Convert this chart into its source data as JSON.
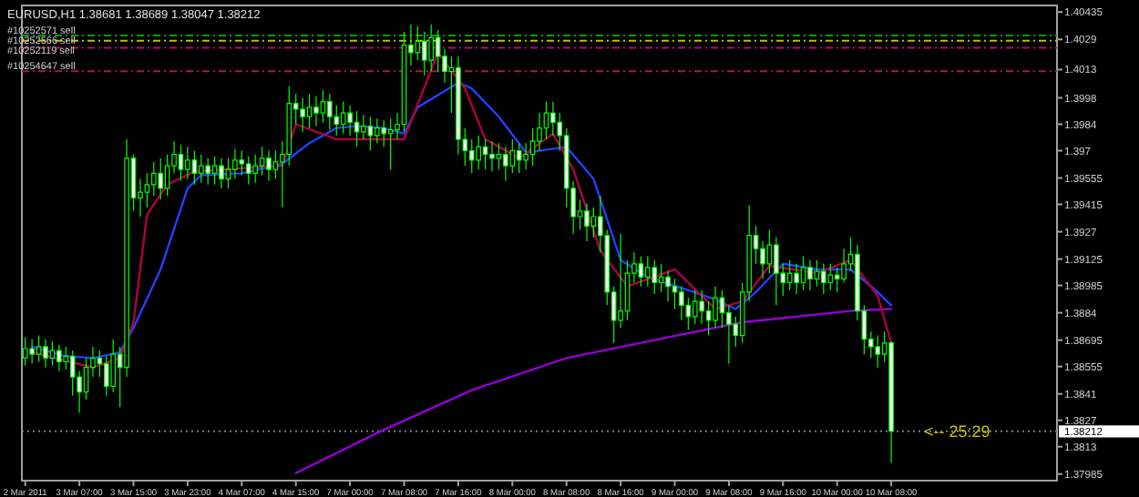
{
  "chart_data": {
    "type": "candlestick",
    "title": "EURUSD,H1  1.38681 1.38689 1.38047 1.38212",
    "categories": [
      "2 Mar 2011",
      null,
      null,
      null,
      null,
      null,
      null,
      null,
      "3 Mar 07:00",
      null,
      null,
      null,
      null,
      null,
      null,
      null,
      "3 Mar 15:00",
      null,
      null,
      null,
      null,
      null,
      null,
      null,
      "3 Mar 23:00",
      null,
      null,
      null,
      null,
      null,
      null,
      null,
      "4 Mar 07:00",
      null,
      null,
      null,
      null,
      null,
      null,
      null,
      "4 Mar 15:00",
      null,
      null,
      null,
      null,
      null,
      null,
      null,
      "7 Mar 00:00",
      null,
      null,
      null,
      null,
      null,
      null,
      null,
      "7 Mar 08:00",
      null,
      null,
      null,
      null,
      null,
      null,
      null,
      "7 Mar 16:00",
      null,
      null,
      null,
      null,
      null,
      null,
      null,
      "8 Mar 00:00",
      null,
      null,
      null,
      null,
      null,
      null,
      null,
      "8 Mar 08:00",
      null,
      null,
      null,
      null,
      null,
      null,
      null,
      "8 Mar 16:00",
      null,
      null,
      null,
      null,
      null,
      null,
      null,
      "9 Mar 00:00",
      null,
      null,
      null,
      null,
      null,
      null,
      null,
      "9 Mar 08:00",
      null,
      null,
      null,
      null,
      null,
      null,
      null,
      "9 Mar 16:00",
      null,
      null,
      null,
      null,
      null,
      null,
      null,
      "10 Mar 00:00",
      null,
      null,
      null,
      null,
      null,
      null,
      null,
      "10 Mar 08:00",
      null,
      null,
      null,
      null,
      null,
      null,
      null,
      null,
      null,
      null,
      null,
      null,
      null,
      null,
      null,
      null,
      null,
      null,
      null,
      null,
      null,
      null,
      null,
      null
    ],
    "ylim": [
      1.3795,
      1.4047
    ],
    "yticks": [
      1.37985,
      1.3813,
      1.3827,
      1.3841,
      1.38555,
      1.38695,
      1.3884,
      1.38985,
      1.39125,
      1.3927,
      1.39415,
      1.39555,
      1.397,
      1.3984,
      1.3998,
      1.4013,
      1.4029,
      1.40435
    ],
    "ref_lines": [
      {
        "axis": "y",
        "value": 1.40311,
        "label": "#10252571 sell",
        "color": "#00a000",
        "line_style": "dashed"
      },
      {
        "axis": "y",
        "value": 1.40283,
        "label": "#10252566 sell",
        "color": "#c0c000",
        "line_style": "dashed"
      },
      {
        "axis": "y",
        "value": 1.40245,
        "label": "#10252119 sell",
        "color": "#c00080",
        "line_style": "dashed"
      },
      {
        "axis": "y",
        "value": 1.40121,
        "label": "#10254647 sell",
        "color": "#a02040",
        "line_style": "dashed"
      },
      {
        "axis": "y",
        "value": 1.38212,
        "label": "1.38212",
        "color": "#708090",
        "line_style": "dotted"
      }
    ],
    "annotations": [
      "<-- 25:29"
    ],
    "series": [
      {
        "type": "line",
        "color": "#9400d3",
        "values": [
          null,
          null,
          null,
          null,
          null,
          null,
          null,
          null,
          null,
          null,
          null,
          null,
          null,
          null,
          null,
          null,
          null,
          null,
          null,
          null,
          null,
          null,
          null,
          null,
          null,
          null,
          null,
          null,
          null,
          null,
          null,
          null,
          null,
          null,
          null,
          null,
          null,
          null,
          null,
          null,
          1.3799,
          null,
          null,
          null,
          null,
          null,
          null,
          null,
          null,
          null,
          null,
          null,
          null,
          1.3822,
          null,
          null,
          null,
          null,
          null,
          null,
          null,
          null,
          null,
          null,
          null,
          null,
          1.3843,
          null,
          null,
          null,
          null,
          null,
          null,
          null,
          null,
          null,
          null,
          null,
          null,
          null,
          1.386,
          null,
          null,
          null,
          null,
          null,
          null,
          null,
          null,
          null,
          null,
          null,
          null,
          null,
          null,
          null,
          null,
          null,
          null,
          null,
          null,
          null,
          null,
          null,
          null,
          null,
          1.3879,
          null,
          null,
          null,
          null,
          null,
          null,
          null,
          null,
          null,
          null,
          null,
          null,
          null,
          null,
          null,
          1.3885,
          null,
          null,
          null,
          null,
          null,
          1.3886,
          null,
          null,
          null,
          null,
          null,
          null,
          null,
          null,
          null,
          null,
          null,
          null,
          null,
          null,
          null,
          null,
          null,
          null,
          null,
          null,
          null,
          null,
          null,
          null
        ]
      },
      {
        "type": "line",
        "color": "#2040ff",
        "values": [
          null,
          1.3866,
          null,
          null,
          null,
          null,
          1.3861,
          null,
          null,
          null,
          1.386,
          null,
          null,
          null,
          1.3863,
          null,
          1.3876,
          null,
          null,
          null,
          1.3907,
          null,
          null,
          null,
          1.395,
          null,
          1.3957,
          null,
          null,
          null,
          null,
          null,
          1.3958,
          null,
          null,
          null,
          null,
          null,
          1.3963,
          null,
          null,
          null,
          1.3974,
          null,
          null,
          null,
          1.3982,
          null,
          null,
          1.3983,
          null,
          null,
          null,
          1.3982,
          null,
          null,
          1.3979,
          null,
          1.3993,
          null,
          null,
          null,
          null,
          null,
          1.4006,
          null,
          1.4003,
          null,
          null,
          null,
          1.3988,
          null,
          null,
          null,
          1.3969,
          null,
          null,
          null,
          null,
          null,
          1.3972,
          null,
          null,
          null,
          1.3955,
          null,
          null,
          null,
          1.3912,
          null,
          null,
          null,
          1.3903,
          null,
          null,
          null,
          null,
          null,
          1.3896,
          null,
          null,
          null,
          1.3891,
          null,
          null,
          1.3886,
          null,
          null,
          1.3895,
          null,
          null,
          null,
          1.391,
          null,
          null,
          null,
          null,
          1.3907,
          null,
          null,
          null,
          null,
          1.3907,
          null,
          null,
          null,
          1.3895,
          null,
          1.3888,
          null,
          null,
          null,
          null,
          null,
          null,
          null,
          null,
          null,
          null,
          null,
          null,
          null,
          null,
          null,
          null,
          null,
          null,
          null,
          null,
          null,
          null,
          null,
          null
        ]
      },
      {
        "type": "line",
        "color": "#b00040",
        "values": [
          null,
          1.3863,
          null,
          null,
          null,
          null,
          null,
          null,
          null,
          null,
          1.3855,
          null,
          null,
          null,
          1.386,
          null,
          1.3879,
          null,
          1.3936,
          null,
          null,
          1.3952,
          null,
          null,
          null,
          1.3959,
          null,
          null,
          null,
          null,
          null,
          null,
          null,
          null,
          null,
          null,
          null,
          null,
          1.3962,
          null,
          1.3984,
          null,
          null,
          null,
          null,
          null,
          1.3976,
          null,
          null,
          null,
          null,
          null,
          null,
          null,
          null,
          null,
          1.3976,
          null,
          null,
          null,
          null,
          1.4022,
          null,
          null,
          null,
          1.4003,
          null,
          null,
          1.3976,
          null,
          null,
          null,
          null,
          1.3966,
          null,
          null,
          null,
          null,
          1.3979,
          null,
          null,
          1.396,
          null,
          null,
          null,
          1.3917,
          null,
          null,
          null,
          1.3898,
          null,
          null,
          null,
          null,
          null,
          null,
          1.3907,
          null,
          null,
          null,
          null,
          null,
          1.3886,
          null,
          null,
          null,
          1.389,
          null,
          null,
          null,
          1.3909,
          null,
          null,
          null,
          null,
          null,
          null,
          1.3905,
          null,
          null,
          null,
          null,
          1.3912,
          null,
          null,
          null,
          1.3893,
          null,
          1.3868,
          null,
          null,
          null,
          null,
          null,
          null,
          null,
          null,
          null,
          null,
          null,
          null,
          null,
          null,
          null,
          null,
          null,
          null,
          null,
          null,
          null,
          null,
          null,
          null
        ]
      },
      {
        "color": "#00ff00",
        "colors": [
          "#000000",
          "#ffffff",
          "#000000",
          "#ffffff",
          "#000000",
          "#ffffff",
          "#000000",
          "#ffffff",
          "#ffffff",
          "#000000",
          "#000000",
          "#ffffff",
          "#ffffff",
          "#000000",
          "#ffffff",
          "#000000",
          "#ffffff",
          "#000000",
          "#000000",
          "#000000",
          "#ffffff",
          "#000000",
          "#000000",
          "#ffffff",
          "#000000",
          "#ffffff",
          "#000000",
          "#ffffff",
          "#000000",
          "#ffffff",
          "#000000",
          "#000000",
          "#ffffff",
          "#ffffff",
          "#000000",
          "#000000",
          "#ffffff",
          "#000000",
          "#000000",
          "#000000",
          "#ffffff",
          "#ffffff",
          "#000000",
          "#ffffff",
          "#000000",
          "#ffffff",
          "#ffffff",
          "#000000",
          "#ffffff",
          "#ffffff",
          "#000000",
          "#ffffff",
          "#000000",
          "#ffffff",
          "#000000",
          "#000000",
          "#000000",
          "#ffffff",
          "#000000",
          "#ffffff",
          "#000000",
          "#ffffff",
          "#ffffff",
          "#000000",
          "#ffffff",
          "#ffffff",
          "#ffffff",
          "#000000",
          "#ffffff",
          "#ffffff",
          "#000000",
          "#ffffff",
          "#000000",
          "#ffffff",
          "#000000",
          "#000000",
          "#000000",
          "#000000",
          "#ffffff",
          "#ffffff",
          "#ffffff",
          "#ffffff",
          "#000000",
          "#ffffff",
          "#000000",
          "#ffffff",
          "#ffffff",
          "#ffffff",
          "#000000",
          "#000000",
          "#000000",
          "#ffffff",
          "#000000",
          "#ffffff",
          "#000000",
          "#ffffff",
          "#ffffff",
          "#ffffff",
          "#ffffff",
          "#000000",
          "#ffffff",
          "#ffffff",
          "#000000",
          "#ffffff",
          "#ffffff",
          "#ffffff",
          "#000000",
          "#000000",
          "#ffffff",
          "#ffffff",
          "#000000",
          "#ffffff",
          "#ffffff",
          "#000000",
          "#ffffff",
          "#000000",
          "#ffffff",
          "#000000",
          "#ffffff",
          "#000000",
          "#ffffff",
          "#000000",
          "#000000",
          "#ffffff",
          "#ffffff",
          "#ffffff",
          "#ffffff",
          "#000000",
          "#ffffff",
          null,
          null,
          null,
          null,
          null,
          null,
          null,
          null,
          null,
          null,
          null,
          null,
          null,
          null,
          null,
          null,
          null,
          null,
          null,
          null,
          null,
          null,
          null,
          null
        ],
        "ohlc": [
          [
            1.386,
            1.3871,
            1.3856,
            1.3865
          ],
          [
            1.3865,
            1.387,
            1.3857,
            1.3862
          ],
          [
            1.3862,
            1.3872,
            1.3858,
            1.3866
          ],
          [
            1.3866,
            1.387,
            1.3855,
            1.386
          ],
          [
            1.386,
            1.3869,
            1.3856,
            1.3864
          ],
          [
            1.3864,
            1.3867,
            1.3853,
            1.3858
          ],
          [
            1.3858,
            1.3866,
            1.3854,
            1.3861
          ],
          [
            1.3861,
            1.3864,
            1.384,
            1.385
          ],
          [
            1.385,
            1.3853,
            1.3831,
            1.3842
          ],
          [
            1.3842,
            1.386,
            1.3838,
            1.3855
          ],
          [
            1.3855,
            1.3866,
            1.385,
            1.386
          ],
          [
            1.386,
            1.3864,
            1.385,
            1.3857
          ],
          [
            1.3857,
            1.3861,
            1.384,
            1.3845
          ],
          [
            1.3845,
            1.387,
            1.3842,
            1.3862
          ],
          [
            1.3862,
            1.3866,
            1.3834,
            1.3855
          ],
          [
            1.3855,
            1.3976,
            1.385,
            1.3966
          ],
          [
            1.3966,
            1.3968,
            1.3938,
            1.3945
          ],
          [
            1.3945,
            1.3955,
            1.3935,
            1.3948
          ],
          [
            1.3948,
            1.3958,
            1.394,
            1.3952
          ],
          [
            1.3952,
            1.3964,
            1.3946,
            1.3958
          ],
          [
            1.3958,
            1.3966,
            1.3944,
            1.395
          ],
          [
            1.395,
            1.3968,
            1.3946,
            1.3962
          ],
          [
            1.3962,
            1.3975,
            1.3958,
            1.3968
          ],
          [
            1.3968,
            1.3973,
            1.3954,
            1.396
          ],
          [
            1.396,
            1.3972,
            1.3955,
            1.3965
          ],
          [
            1.3965,
            1.397,
            1.3952,
            1.3958
          ],
          [
            1.3958,
            1.3968,
            1.3953,
            1.3962
          ],
          [
            1.3962,
            1.3966,
            1.3952,
            1.3958
          ],
          [
            1.3958,
            1.3967,
            1.3952,
            1.3962
          ],
          [
            1.3962,
            1.3966,
            1.395,
            1.3955
          ],
          [
            1.3955,
            1.3966,
            1.395,
            1.396
          ],
          [
            1.396,
            1.3971,
            1.3955,
            1.3965
          ],
          [
            1.3965,
            1.397,
            1.3957,
            1.3963
          ],
          [
            1.3963,
            1.3967,
            1.3952,
            1.3958
          ],
          [
            1.3958,
            1.3968,
            1.3953,
            1.3962
          ],
          [
            1.3962,
            1.3972,
            1.3957,
            1.3966
          ],
          [
            1.3966,
            1.397,
            1.3954,
            1.396
          ],
          [
            1.396,
            1.397,
            1.3955,
            1.3964
          ],
          [
            1.3964,
            1.3975,
            1.394,
            1.3968
          ],
          [
            1.3968,
            1.4004,
            1.3962,
            1.3995
          ],
          [
            1.3995,
            1.4,
            1.3984,
            1.3992
          ],
          [
            1.3992,
            1.3998,
            1.398,
            1.3988
          ],
          [
            1.3988,
            1.4,
            1.3982,
            1.3993
          ],
          [
            1.3993,
            1.3999,
            1.3983,
            1.399
          ],
          [
            1.399,
            1.4002,
            1.3985,
            1.3996
          ],
          [
            1.3996,
            1.4,
            1.3981,
            1.3988
          ],
          [
            1.3988,
            1.3994,
            1.3978,
            1.3984
          ],
          [
            1.3984,
            1.3996,
            1.3979,
            1.399
          ],
          [
            1.399,
            1.3994,
            1.3978,
            1.3985
          ],
          [
            1.3985,
            1.3991,
            1.3972,
            1.398
          ],
          [
            1.398,
            1.3989,
            1.3976,
            1.3983
          ],
          [
            1.3983,
            1.3988,
            1.397,
            1.3978
          ],
          [
            1.3978,
            1.3987,
            1.3974,
            1.3982
          ],
          [
            1.3982,
            1.3986,
            1.3972,
            1.3979
          ],
          [
            1.3979,
            1.3987,
            1.396,
            1.3981
          ],
          [
            1.3981,
            1.399,
            1.3976,
            1.3984
          ],
          [
            1.3984,
            1.4033,
            1.398,
            1.4026
          ],
          [
            1.4026,
            1.4037,
            1.4015,
            1.4022
          ],
          [
            1.4022,
            1.4036,
            1.4018,
            1.4028
          ],
          [
            1.4028,
            1.4033,
            1.401,
            1.4018
          ],
          [
            1.4018,
            1.4037,
            1.4012,
            1.403
          ],
          [
            1.403,
            1.4034,
            1.4012,
            1.402
          ],
          [
            1.402,
            1.4024,
            1.4006,
            1.4012
          ],
          [
            1.4012,
            1.402,
            1.399,
            1.4014
          ],
          [
            1.4014,
            1.402,
            1.3968,
            1.3976
          ],
          [
            1.3976,
            1.3982,
            1.3962,
            1.397
          ],
          [
            1.397,
            1.3976,
            1.3958,
            1.3965
          ],
          [
            1.3965,
            1.3978,
            1.396,
            1.3972
          ],
          [
            1.3972,
            1.3976,
            1.396,
            1.3968
          ],
          [
            1.3968,
            1.3975,
            1.3959,
            1.3966
          ],
          [
            1.3966,
            1.3974,
            1.396,
            1.3968
          ],
          [
            1.3968,
            1.3972,
            1.3954,
            1.3962
          ],
          [
            1.3962,
            1.3976,
            1.3958,
            1.397
          ],
          [
            1.397,
            1.3974,
            1.3958,
            1.3965
          ],
          [
            1.3965,
            1.3974,
            1.396,
            1.3968
          ],
          [
            1.3968,
            1.3982,
            1.3962,
            1.3975
          ],
          [
            1.3975,
            1.399,
            1.397,
            1.3982
          ],
          [
            1.3982,
            1.3996,
            1.3976,
            1.399
          ],
          [
            1.399,
            1.3996,
            1.3978,
            1.3985
          ],
          [
            1.3985,
            1.399,
            1.397,
            1.3978
          ],
          [
            1.3978,
            1.3982,
            1.394,
            1.395
          ],
          [
            1.395,
            1.3954,
            1.3926,
            1.3935
          ],
          [
            1.3935,
            1.3944,
            1.3928,
            1.3938
          ],
          [
            1.3938,
            1.3942,
            1.3922,
            1.393
          ],
          [
            1.393,
            1.394,
            1.3924,
            1.3935
          ],
          [
            1.3935,
            1.3946,
            1.3916,
            1.3925
          ],
          [
            1.3925,
            1.3928,
            1.3888,
            1.3895
          ],
          [
            1.3895,
            1.3898,
            1.3868,
            1.388
          ],
          [
            1.388,
            1.3926,
            1.3876,
            1.3885
          ],
          [
            1.3885,
            1.3912,
            1.388,
            1.3905
          ],
          [
            1.3905,
            1.3916,
            1.39,
            1.391
          ],
          [
            1.391,
            1.3914,
            1.3898,
            1.3903
          ],
          [
            1.3903,
            1.3914,
            1.3898,
            1.3908
          ],
          [
            1.3908,
            1.3912,
            1.3894,
            1.39
          ],
          [
            1.39,
            1.391,
            1.3895,
            1.3903
          ],
          [
            1.3903,
            1.3906,
            1.389,
            1.3898
          ],
          [
            1.3898,
            1.3902,
            1.3886,
            1.3895
          ],
          [
            1.3895,
            1.3898,
            1.388,
            1.3888
          ],
          [
            1.3888,
            1.3892,
            1.3875,
            1.3882
          ],
          [
            1.3882,
            1.3896,
            1.3878,
            1.389
          ],
          [
            1.389,
            1.3896,
            1.3878,
            1.3885
          ],
          [
            1.3885,
            1.389,
            1.3872,
            1.388
          ],
          [
            1.388,
            1.3898,
            1.3876,
            1.3892
          ],
          [
            1.3892,
            1.3896,
            1.3876,
            1.3884
          ],
          [
            1.3884,
            1.3888,
            1.3857,
            1.3878
          ],
          [
            1.3878,
            1.3882,
            1.3866,
            1.3872
          ],
          [
            1.3872,
            1.39,
            1.3868,
            1.3895
          ],
          [
            1.3895,
            1.3941,
            1.389,
            1.3925
          ],
          [
            1.3925,
            1.393,
            1.391,
            1.3918
          ],
          [
            1.3918,
            1.3922,
            1.3902,
            1.391
          ],
          [
            1.391,
            1.3928,
            1.3905,
            1.392
          ],
          [
            1.392,
            1.3924,
            1.3888,
            1.3905
          ],
          [
            1.3905,
            1.391,
            1.3893,
            1.39
          ],
          [
            1.39,
            1.3912,
            1.3896,
            1.3905
          ],
          [
            1.3905,
            1.391,
            1.3894,
            1.39
          ],
          [
            1.39,
            1.3914,
            1.3896,
            1.3908
          ],
          [
            1.3908,
            1.3912,
            1.3896,
            1.3902
          ],
          [
            1.3902,
            1.3912,
            1.3898,
            1.3906
          ],
          [
            1.3906,
            1.391,
            1.3894,
            1.39
          ],
          [
            1.39,
            1.391,
            1.3896,
            1.3904
          ],
          [
            1.3904,
            1.3908,
            1.3895,
            1.3902
          ],
          [
            1.3902,
            1.3918,
            1.39,
            1.391
          ],
          [
            1.391,
            1.3924,
            1.3906,
            1.3915
          ],
          [
            1.3915,
            1.392,
            1.388,
            1.3885
          ],
          [
            1.3885,
            1.3888,
            1.3862,
            1.387
          ],
          [
            1.387,
            1.3874,
            1.386,
            1.3866
          ],
          [
            1.3866,
            1.3872,
            1.3855,
            1.3862
          ],
          [
            1.3862,
            1.3874,
            1.3858,
            1.3868
          ],
          [
            1.38681,
            1.38689,
            1.38047,
            1.38212
          ],
          null,
          null,
          null,
          null,
          null,
          null,
          null,
          null,
          null,
          null,
          null,
          null,
          null,
          null,
          null,
          null,
          null,
          null,
          null,
          null,
          null,
          null,
          null,
          null
        ]
      }
    ]
  }
}
